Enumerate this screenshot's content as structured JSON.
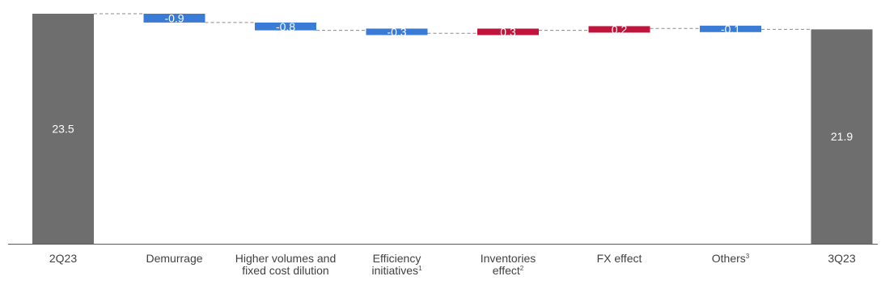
{
  "chart_data": {
    "type": "waterfall",
    "title": "",
    "xlabel": "",
    "ylabel": "",
    "ylim": [
      0,
      23.5
    ],
    "grid": false,
    "legend": "none",
    "categories": [
      {
        "label": "2Q23",
        "sup": ""
      },
      {
        "label": "Demurrage",
        "sup": ""
      },
      {
        "label": "Higher volumes and fixed cost dilution",
        "sup": ""
      },
      {
        "label": "Efficiency initiatives",
        "sup": "1"
      },
      {
        "label": "Inventories effect",
        "sup": "2"
      },
      {
        "label": "FX effect",
        "sup": ""
      },
      {
        "label": "Others",
        "sup": "3"
      },
      {
        "label": "3Q23",
        "sup": ""
      }
    ],
    "bars": [
      {
        "kind": "total",
        "value": 23.5,
        "label": "23.5"
      },
      {
        "kind": "delta",
        "value": -0.9,
        "label": "-0.9"
      },
      {
        "kind": "delta",
        "value": -0.8,
        "label": "-0.8"
      },
      {
        "kind": "delta",
        "value": -0.3,
        "label": "-0.3"
      },
      {
        "kind": "delta",
        "value": 0.3,
        "label": "0.3"
      },
      {
        "kind": "delta",
        "value": 0.2,
        "label": "0.2"
      },
      {
        "kind": "delta",
        "value": -0.1,
        "label": "-0.1"
      },
      {
        "kind": "total",
        "value": 21.9,
        "label": "21.9"
      }
    ],
    "colors": {
      "total": "#6d6e6d",
      "decrease": "#3a7bd5",
      "increase": "#c0143c",
      "connector": "#8a8a8a",
      "axis": "#595959",
      "label_text": "#ffffff",
      "category_text": "#404040"
    }
  }
}
